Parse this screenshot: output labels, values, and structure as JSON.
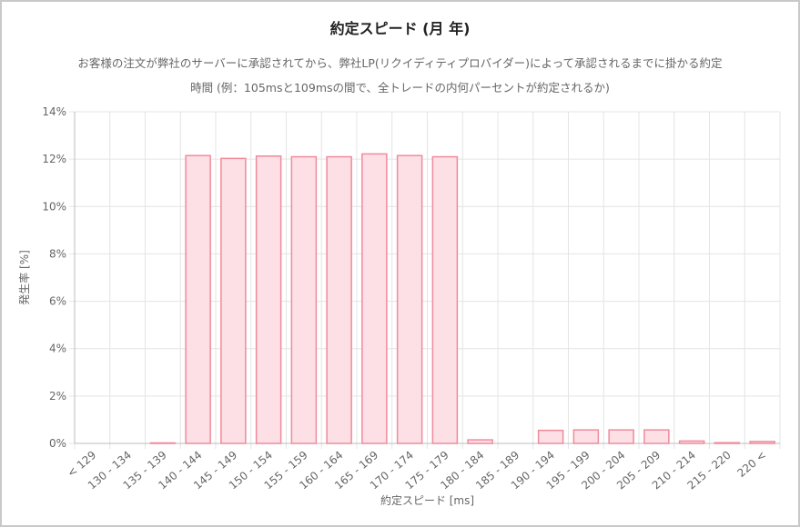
{
  "chart_data": {
    "type": "bar",
    "title": "約定スピード (月 年)",
    "subtitle_lines": [
      "お客様の注文が弊社のサーバーに承認されてから、弊社LP(リクイディティプロバイダー)によって承認されるまでに掛かる約定",
      "時間 (例：105msと109msの間で、全トレードの内何パーセントが約定されるか)"
    ],
    "xlabel": "約定スピード [ms]",
    "ylabel": "発生率 [%]",
    "ylim": [
      0,
      14
    ],
    "yticks": [
      0,
      2,
      4,
      6,
      8,
      10,
      12,
      14
    ],
    "ytick_labels": [
      "0%",
      "2%",
      "4%",
      "6%",
      "8%",
      "10%",
      "12%",
      "14%"
    ],
    "grid": true,
    "categories": [
      "< 129",
      "130 - 134",
      "135 - 139",
      "140 - 144",
      "145 - 149",
      "150 - 154",
      "155 - 159",
      "160 - 164",
      "165 - 169",
      "170 - 174",
      "175 - 179",
      "180 - 184",
      "185 - 189",
      "190 - 194",
      "195 - 199",
      "200 - 204",
      "205 - 209",
      "210 - 214",
      "215 - 220",
      "220 <"
    ],
    "values": [
      0,
      0,
      0.02,
      12.15,
      12.03,
      12.13,
      12.1,
      12.1,
      12.22,
      12.15,
      12.1,
      0.15,
      0,
      0.55,
      0.57,
      0.57,
      0.57,
      0.1,
      0.03,
      0.08
    ],
    "colors": {
      "bar_fill": "#fde0e6",
      "bar_stroke": "#f08a9b",
      "grid": "#e4e4e4",
      "axis": "#bdbdbd"
    }
  }
}
